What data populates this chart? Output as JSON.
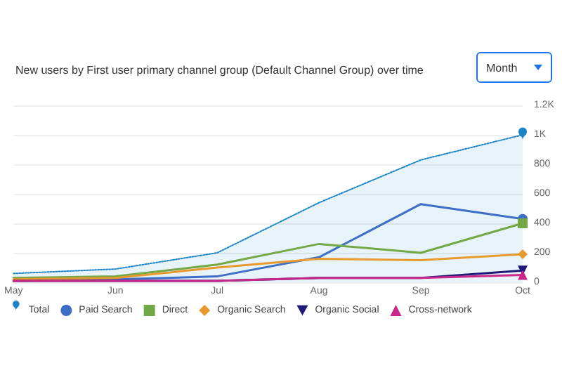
{
  "chart_data": {
    "type": "line",
    "title": "New users by First user primary channel group (Default Channel Group) over time",
    "annotations": [
      "Month"
    ],
    "categories": [
      "May",
      "Jun",
      "Jul",
      "Aug",
      "Sep",
      "Oct"
    ],
    "series": [
      {
        "name": "Total",
        "type": "area",
        "color": "#1a84c7",
        "line_style": "dotted",
        "values": [
          60,
          90,
          200,
          540,
          830,
          1000
        ]
      },
      {
        "name": "Paid Search",
        "color": "#3d6fc6",
        "line_style": "solid",
        "values": [
          10,
          20,
          40,
          170,
          530,
          430
        ]
      },
      {
        "name": "Direct",
        "color": "#73a847",
        "line_style": "solid",
        "values": [
          30,
          40,
          120,
          260,
          200,
          400
        ]
      },
      {
        "name": "Organic Search",
        "color": "#e8992e",
        "line_style": "solid",
        "values": [
          20,
          30,
          100,
          160,
          150,
          190
        ]
      },
      {
        "name": "Organic Social",
        "color": "#1f1a7a",
        "line_style": "solid",
        "values": [
          10,
          10,
          10,
          30,
          30,
          80
        ]
      },
      {
        "name": "Cross-network",
        "color": "#c8288a",
        "line_style": "solid",
        "values": [
          10,
          10,
          10,
          30,
          30,
          50
        ]
      }
    ],
    "ylim": [
      0,
      1200
    ],
    "yticks": [
      0,
      200,
      400,
      600,
      800,
      {
        "value": 1000,
        "label": "1K"
      },
      {
        "value": 1200,
        "label": "1.2K"
      }
    ],
    "grid": "y",
    "legend": "bottom"
  }
}
